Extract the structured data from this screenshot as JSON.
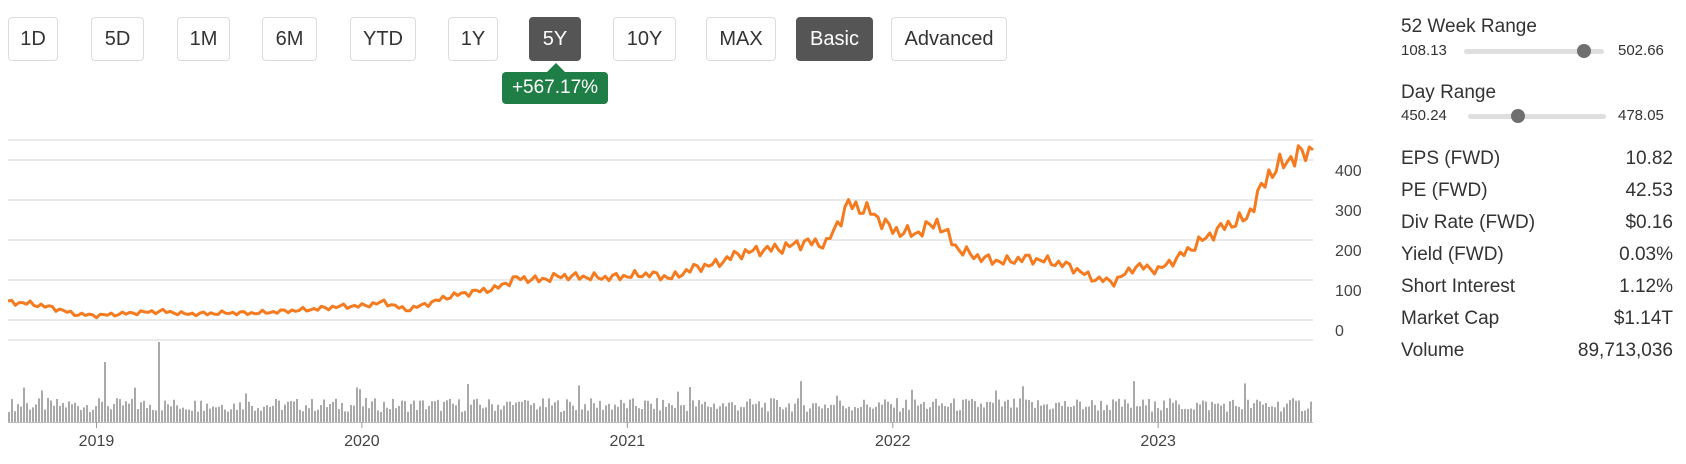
{
  "ranges": [
    "1D",
    "5D",
    "1M",
    "6M",
    "YTD",
    "1Y",
    "5Y",
    "10Y",
    "MAX"
  ],
  "active_range": "5Y",
  "view_modes": [
    "Basic",
    "Advanced"
  ],
  "active_view": "Basic",
  "change_badge": "+567.17%",
  "colors": {
    "price_line": "#f47b20",
    "volume": "#a9a9a9",
    "badge": "#1e7e45",
    "active_button": "#555555"
  },
  "chart_data": {
    "type": "line",
    "title": "",
    "xlabel": "",
    "ylabel": "",
    "x_ticks": [
      "2019",
      "2020",
      "2021",
      "2022",
      "2023"
    ],
    "y_ticks": [
      "0",
      "100",
      "200",
      "300",
      "400"
    ],
    "ylim": [
      -25,
      475
    ],
    "x_range": [
      "2018-09",
      "2023-08"
    ],
    "series": [
      {
        "values_desc": "weekly closing price",
        "x": [
          "2018-09",
          "2018-10",
          "2018-11",
          "2018-12",
          "2019-01",
          "2019-02",
          "2019-03",
          "2019-04",
          "2019-05",
          "2019-06",
          "2019-07",
          "2019-08",
          "2019-09",
          "2019-10",
          "2019-11",
          "2019-12",
          "2020-01",
          "2020-02",
          "2020-03",
          "2020-04",
          "2020-05",
          "2020-06",
          "2020-07",
          "2020-08",
          "2020-09",
          "2020-10",
          "2020-11",
          "2020-12",
          "2021-01",
          "2021-02",
          "2021-03",
          "2021-04",
          "2021-05",
          "2021-06",
          "2021-07",
          "2021-08",
          "2021-09",
          "2021-10",
          "2021-11",
          "2021-12",
          "2022-01",
          "2022-02",
          "2022-03",
          "2022-04",
          "2022-05",
          "2022-06",
          "2022-07",
          "2022-08",
          "2022-09",
          "2022-10",
          "2022-11",
          "2022-12",
          "2023-01",
          "2023-02",
          "2023-03",
          "2023-04",
          "2023-05",
          "2023-06",
          "2023-07",
          "2023-08"
        ],
        "y": [
          70,
          66,
          56,
          40,
          36,
          40,
          44,
          47,
          40,
          41,
          43,
          42,
          45,
          49,
          53,
          59,
          60,
          70,
          50,
          66,
          85,
          95,
          103,
          130,
          125,
          135,
          133,
          131,
          135,
          140,
          130,
          155,
          165,
          190,
          200,
          205,
          220,
          215,
          315,
          295,
          250,
          240,
          270,
          200,
          180,
          170,
          180,
          172,
          160,
          130,
          120,
          160,
          150,
          185,
          225,
          260,
          280,
          390,
          430,
          450
        ]
      }
    ],
    "volume_desc": "daily trading volume bars (relative heights)"
  },
  "stats": {
    "week52": {
      "title": "52 Week Range",
      "low": "108.13",
      "high": "502.66",
      "position": 0.86
    },
    "day": {
      "title": "Day Range",
      "low": "450.24",
      "high": "478.05",
      "position": 0.36
    },
    "rows": [
      {
        "label": "EPS (FWD)",
        "value": "10.82"
      },
      {
        "label": "PE (FWD)",
        "value": "42.53"
      },
      {
        "label": "Div Rate (FWD)",
        "value": "$0.16"
      },
      {
        "label": "Yield (FWD)",
        "value": "0.03%"
      },
      {
        "label": "Short Interest",
        "value": "1.12%"
      },
      {
        "label": "Market Cap",
        "value": "$1.14T"
      },
      {
        "label": "Volume",
        "value": "89,713,036"
      }
    ]
  }
}
